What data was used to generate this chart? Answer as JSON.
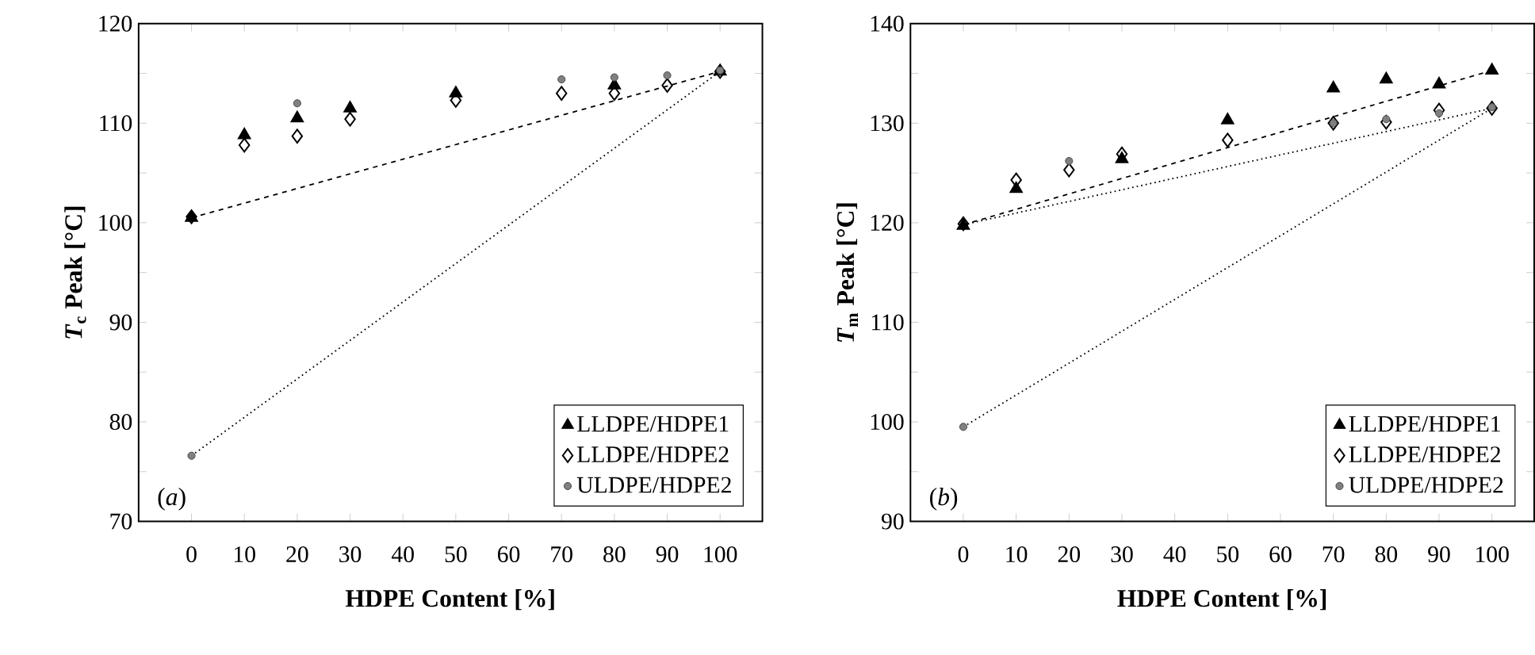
{
  "chart_data": [
    {
      "type": "scatter",
      "xlabel": "HDPE Content [%]",
      "ylabel": "*T*$_{c}$ Peak [°C]",
      "annotations": [
        "(*a*)"
      ],
      "xlim": [
        -10,
        108
      ],
      "ylim": [
        70,
        120
      ],
      "xticks": [
        0,
        10,
        20,
        30,
        40,
        50,
        60,
        70,
        80,
        90,
        100
      ],
      "yticks": [
        70,
        {
          "value": 75,
          "label": null
        },
        80,
        {
          "value": 85,
          "label": null
        },
        90,
        {
          "value": 95,
          "label": null
        },
        100,
        {
          "value": 105,
          "label": null
        },
        110,
        {
          "value": 115,
          "label": null
        },
        120
      ],
      "legend": "bottom right",
      "grid": false,
      "series": [
        {
          "type": "line",
          "color": "#000000",
          "line_style": "dashed",
          "x": [
            0,
            100
          ],
          "values": [
            100.5,
            115.2
          ]
        },
        {
          "type": "line",
          "color": "#000000",
          "line_style": "dotted",
          "x": [
            0,
            100
          ],
          "values": [
            76.6,
            115.2
          ]
        },
        {
          "name": "LLDPE/HDPE1",
          "color": "#000000",
          "marker": "triangle",
          "x": [
            0,
            10,
            20,
            30,
            50,
            80,
            100
          ],
          "values": [
            100.5,
            108.8,
            110.5,
            111.5,
            113.0,
            113.8,
            115.2
          ]
        },
        {
          "name": "LLDPE/HDPE2",
          "color": "#000000",
          "marker": "diamond",
          "x": [
            0,
            10,
            20,
            30,
            50,
            70,
            80,
            90,
            100
          ],
          "values": [
            100.6,
            107.8,
            108.7,
            110.4,
            112.3,
            113.0,
            113.0,
            113.8,
            115.2
          ]
        },
        {
          "name": "ULDPE/HDPE2",
          "color": "#808080",
          "marker": "circle",
          "x": [
            0,
            20,
            70,
            80,
            90,
            100
          ],
          "values": [
            76.6,
            112.0,
            114.4,
            114.6,
            114.8,
            115.3
          ]
        }
      ]
    },
    {
      "type": "scatter",
      "xlabel": "HDPE Content [%]",
      "ylabel": "*T*$_{m}$ Peak [°C]",
      "annotations": [
        "(*b*)"
      ],
      "xlim": [
        -10,
        108
      ],
      "ylim": [
        90,
        140
      ],
      "xticks": [
        0,
        10,
        20,
        30,
        40,
        50,
        60,
        70,
        80,
        90,
        100
      ],
      "yticks": [
        90,
        {
          "value": 95,
          "label": null
        },
        100,
        {
          "value": 105,
          "label": null
        },
        110,
        {
          "value": 115,
          "label": null
        },
        120,
        {
          "value": 125,
          "label": null
        },
        130,
        {
          "value": 135,
          "label": null
        },
        140
      ],
      "legend": "bottom right",
      "grid": false,
      "series": [
        {
          "type": "line",
          "color": "#000000",
          "line_style": "dashed",
          "x": [
            0,
            100
          ],
          "values": [
            119.8,
            135.3
          ]
        },
        {
          "type": "line",
          "color": "#000000",
          "line_style": "dotted",
          "x": [
            0,
            100
          ],
          "values": [
            119.8,
            131.5
          ]
        },
        {
          "type": "line",
          "color": "#000000",
          "line_style": "dotted",
          "x": [
            0,
            100
          ],
          "values": [
            99.5,
            131.5
          ]
        },
        {
          "name": "LLDPE/HDPE1",
          "color": "#000000",
          "marker": "triangle",
          "x": [
            0,
            10,
            30,
            50,
            70,
            80,
            90,
            100
          ],
          "values": [
            119.7,
            123.4,
            126.4,
            130.3,
            133.5,
            134.4,
            133.9,
            135.3
          ]
        },
        {
          "name": "LLDPE/HDPE2",
          "color": "#000000",
          "marker": "diamond",
          "x": [
            0,
            10,
            20,
            30,
            50,
            70,
            80,
            90,
            100
          ],
          "values": [
            119.9,
            124.3,
            125.3,
            126.9,
            128.3,
            130.0,
            130.1,
            131.3,
            131.5
          ]
        },
        {
          "name": "ULDPE/HDPE2",
          "color": "#808080",
          "marker": "circle",
          "x": [
            0,
            20,
            70,
            80,
            90,
            100
          ],
          "values": [
            99.5,
            126.2,
            130.0,
            130.4,
            131.0,
            131.6
          ]
        }
      ]
    }
  ]
}
